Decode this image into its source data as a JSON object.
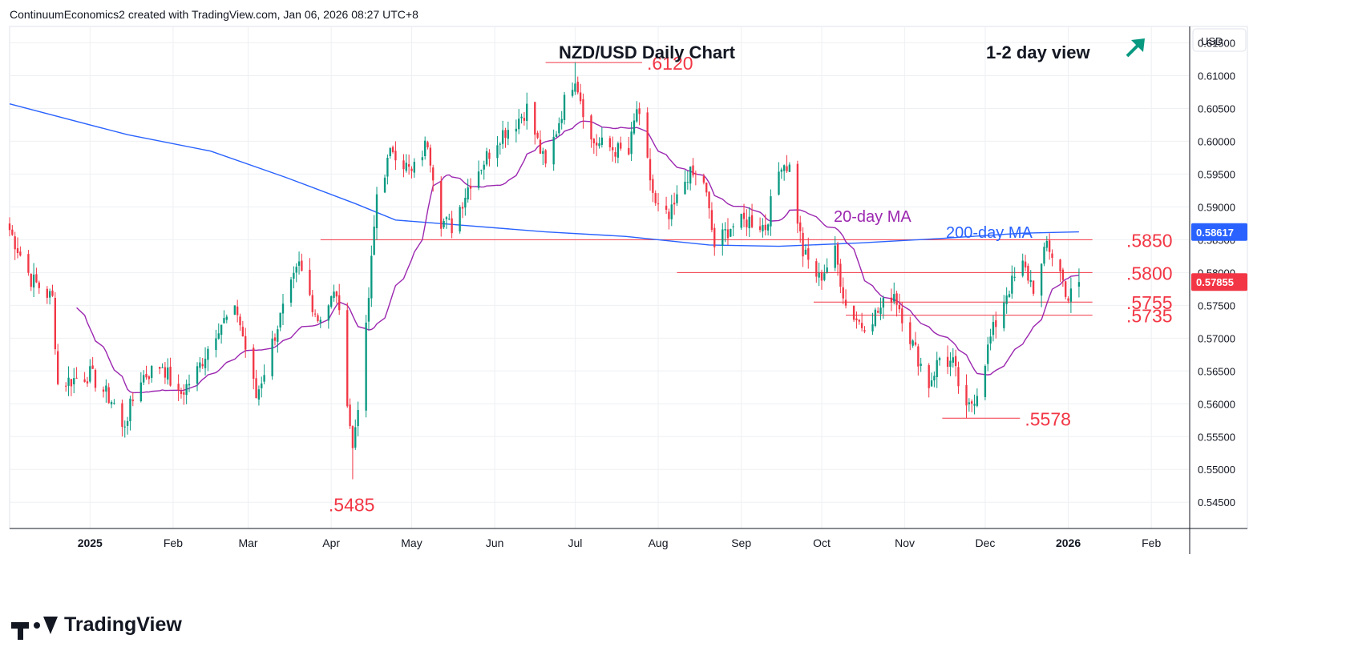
{
  "attribution": "ContinuumEconomics2 created with TradingView.com, Jan 06, 2026 08:27 UTC+8",
  "brand": "TradingView",
  "colors": {
    "up": "#089981",
    "down": "#f23645",
    "ma20": "#9c27b0",
    "ma200": "#2962ff",
    "level": "#f23645",
    "grid": "#eef0f3",
    "arrow": "#089981"
  },
  "chart_data": {
    "type": "candlestick",
    "title": "NZD/USD Daily Chart",
    "view_label": "1-2 day view",
    "view_icon": "arrow-up-right-icon",
    "currency": "USD",
    "ylim": [
      0.541,
      0.6175
    ],
    "y_ticks": [
      "0.61500",
      "0.61000",
      "0.60500",
      "0.60000",
      "0.59500",
      "0.59000",
      "0.58500",
      "0.58000",
      "0.57500",
      "0.57000",
      "0.56500",
      "0.56000",
      "0.55500",
      "0.55000",
      "0.54500"
    ],
    "x_ticks": [
      {
        "label": "2025",
        "date": "2025-01-01"
      },
      {
        "label": "Feb",
        "date": "2025-02-01"
      },
      {
        "label": "Mar",
        "date": "2025-03-01"
      },
      {
        "label": "Apr",
        "date": "2025-04-01"
      },
      {
        "label": "May",
        "date": "2025-05-01"
      },
      {
        "label": "Jun",
        "date": "2025-06-01"
      },
      {
        "label": "Jul",
        "date": "2025-07-01"
      },
      {
        "label": "Aug",
        "date": "2025-08-01"
      },
      {
        "label": "Sep",
        "date": "2025-09-01"
      },
      {
        "label": "Oct",
        "date": "2025-10-01"
      },
      {
        "label": "Nov",
        "date": "2025-11-01"
      },
      {
        "label": "Dec",
        "date": "2025-12-01"
      },
      {
        "label": "2026",
        "date": "2026-01-01"
      },
      {
        "label": "Feb",
        "date": "2026-02-01"
      }
    ],
    "x_range": [
      "2024-12-02",
      "2026-02-15"
    ],
    "price_path": [
      [
        "2024-12-02",
        0.5865
      ],
      [
        "2024-12-10",
        0.579
      ],
      [
        "2024-12-18",
        0.576
      ],
      [
        "2024-12-20",
        0.563
      ],
      [
        "2025-01-01",
        0.5645
      ],
      [
        "2025-01-10",
        0.56
      ],
      [
        "2025-01-13",
        0.556
      ],
      [
        "2025-01-20",
        0.564
      ],
      [
        "2025-01-28",
        0.566
      ],
      [
        "2025-02-03",
        0.561
      ],
      [
        "2025-02-10",
        0.565
      ],
      [
        "2025-02-18",
        0.572
      ],
      [
        "2025-02-25",
        0.574
      ],
      [
        "2025-03-04",
        0.561
      ],
      [
        "2025-03-12",
        0.572
      ],
      [
        "2025-03-20",
        0.581
      ],
      [
        "2025-03-27",
        0.573
      ],
      [
        "2025-04-03",
        0.577
      ],
      [
        "2025-04-09",
        0.553
      ],
      [
        "2025-04-14",
        0.571
      ],
      [
        "2025-04-18",
        0.592
      ],
      [
        "2025-04-24",
        0.599
      ],
      [
        "2025-05-01",
        0.595
      ],
      [
        "2025-05-07",
        0.6
      ],
      [
        "2025-05-12",
        0.588
      ],
      [
        "2025-05-16",
        0.587
      ],
      [
        "2025-05-23",
        0.594
      ],
      [
        "2025-05-28",
        0.597
      ],
      [
        "2025-06-03",
        0.601
      ],
      [
        "2025-06-09",
        0.603
      ],
      [
        "2025-06-13",
        0.605
      ],
      [
        "2025-06-20",
        0.596
      ],
      [
        "2025-06-27",
        0.606
      ],
      [
        "2025-07-01",
        0.61
      ],
      [
        "2025-07-07",
        0.6
      ],
      [
        "2025-07-14",
        0.599
      ],
      [
        "2025-07-21",
        0.598
      ],
      [
        "2025-07-24",
        0.605
      ],
      [
        "2025-07-31",
        0.59
      ],
      [
        "2025-08-05",
        0.588
      ],
      [
        "2025-08-12",
        0.595
      ],
      [
        "2025-08-18",
        0.594
      ],
      [
        "2025-08-22",
        0.584
      ],
      [
        "2025-08-28",
        0.587
      ],
      [
        "2025-09-04",
        0.588
      ],
      [
        "2025-09-10",
        0.587
      ],
      [
        "2025-09-16",
        0.597
      ],
      [
        "2025-09-19",
        0.596
      ],
      [
        "2025-09-24",
        0.583
      ],
      [
        "2025-09-30",
        0.579
      ],
      [
        "2025-10-06",
        0.583
      ],
      [
        "2025-10-10",
        0.575
      ],
      [
        "2025-10-16",
        0.572
      ],
      [
        "2025-10-22",
        0.574
      ],
      [
        "2025-10-28",
        0.577
      ],
      [
        "2025-11-04",
        0.569
      ],
      [
        "2025-11-10",
        0.563
      ],
      [
        "2025-11-14",
        0.567
      ],
      [
        "2025-11-19",
        0.566
      ],
      [
        "2025-11-24",
        0.5585
      ],
      [
        "2025-11-28",
        0.562
      ],
      [
        "2025-12-03",
        0.57
      ],
      [
        "2025-12-09",
        0.577
      ],
      [
        "2025-12-15",
        0.581
      ],
      [
        "2025-12-20",
        0.577
      ],
      [
        "2025-12-24",
        0.5845
      ],
      [
        "2025-12-29",
        0.58
      ],
      [
        "2026-01-01",
        0.576
      ],
      [
        "2026-01-05",
        0.5786
      ]
    ],
    "levels": [
      {
        "label": ".6120",
        "value": 0.612,
        "from": "2025-06-20",
        "to": "2025-07-26"
      },
      {
        "label": ".5850",
        "value": 0.585,
        "from": "2025-03-28",
        "to": "2026-01-10"
      },
      {
        "label": ".5800",
        "value": 0.58,
        "from": "2025-08-08",
        "to": "2026-01-10"
      },
      {
        "label": ".5755",
        "value": 0.5755,
        "from": "2025-09-28",
        "to": "2026-01-10"
      },
      {
        "label": ".5735",
        "value": 0.5735,
        "from": "2025-10-10",
        "to": "2026-01-10"
      },
      {
        "label": ".5578",
        "value": 0.5578,
        "from": "2025-11-15",
        "to": "2025-12-14"
      }
    ],
    "low_label": {
      "label": ".5485",
      "value": 0.5485,
      "date": "2025-04-09"
    },
    "ma200": {
      "name": "200-day MA",
      "points": [
        [
          "2024-12-02",
          0.6057
        ],
        [
          "2025-01-15",
          0.601
        ],
        [
          "2025-02-15",
          0.5985
        ],
        [
          "2025-03-15",
          0.5945
        ],
        [
          "2025-04-10",
          0.5905
        ],
        [
          "2025-04-25",
          0.588
        ],
        [
          "2025-05-20",
          0.5872
        ],
        [
          "2025-06-20",
          0.5862
        ],
        [
          "2025-07-20",
          0.5855
        ],
        [
          "2025-08-20",
          0.5842
        ],
        [
          "2025-09-15",
          0.584
        ],
        [
          "2025-10-15",
          0.5845
        ],
        [
          "2025-11-15",
          0.5852
        ],
        [
          "2025-12-15",
          0.586
        ],
        [
          "2026-01-05",
          0.5862
        ]
      ]
    },
    "ma20": {
      "name": "20-day MA"
    },
    "last_price": {
      "label": "0.57855",
      "value": 0.57855
    },
    "ma200_value": {
      "label": "0.58617",
      "value": 0.58617
    }
  }
}
